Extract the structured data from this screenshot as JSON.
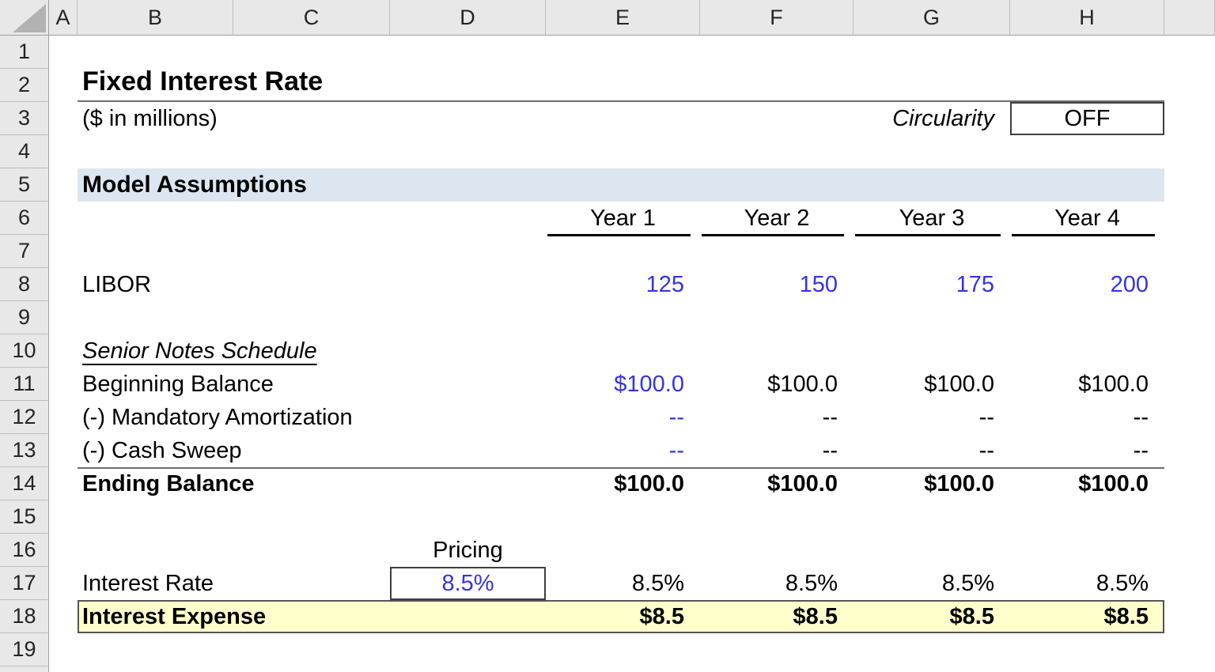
{
  "columns": {
    "letters": [
      "A",
      "B",
      "C",
      "D",
      "E",
      "F",
      "G",
      "H"
    ]
  },
  "rows": {
    "numbers": [
      "1",
      "2",
      "3",
      "4",
      "5",
      "6",
      "7",
      "8",
      "9",
      "10",
      "11",
      "12",
      "13",
      "14",
      "15",
      "16",
      "17",
      "18",
      "19"
    ]
  },
  "header": {
    "title": "Fixed Interest Rate",
    "subtitle": "($ in millions)",
    "circularity_label": "Circularity",
    "circularity_value": "OFF"
  },
  "assumptions": {
    "section_header": "Model Assumptions",
    "years": [
      "Year 1",
      "Year 2",
      "Year 3",
      "Year 4"
    ],
    "libor": {
      "label": "LIBOR",
      "values": [
        "125",
        "150",
        "175",
        "200"
      ]
    }
  },
  "schedule": {
    "header": "Senior Notes Schedule",
    "beginning_balance": {
      "label": "Beginning Balance",
      "values": [
        "$100.0",
        "$100.0",
        "$100.0",
        "$100.0"
      ]
    },
    "mandatory_amortization": {
      "label": "(-) Mandatory Amortization",
      "values": [
        "--",
        "--",
        "--",
        "--"
      ]
    },
    "cash_sweep": {
      "label": "(-) Cash Sweep",
      "values": [
        "--",
        "--",
        "--",
        "--"
      ]
    },
    "ending_balance": {
      "label": "Ending Balance",
      "values": [
        "$100.0",
        "$100.0",
        "$100.0",
        "$100.0"
      ]
    }
  },
  "pricing": {
    "label": "Pricing",
    "value": "8.5%"
  },
  "interest_rate": {
    "label": "Interest Rate",
    "values": [
      "8.5%",
      "8.5%",
      "8.5%",
      "8.5%"
    ]
  },
  "interest_expense": {
    "label": "Interest Expense",
    "values": [
      "$8.5",
      "$8.5",
      "$8.5",
      "$8.5"
    ]
  },
  "colors": {
    "input_blue": "#3333e6",
    "section_band_blue": "#dce6f1",
    "highlight_yellow": "#ffffcc",
    "header_gray": "#e8e8e8"
  }
}
